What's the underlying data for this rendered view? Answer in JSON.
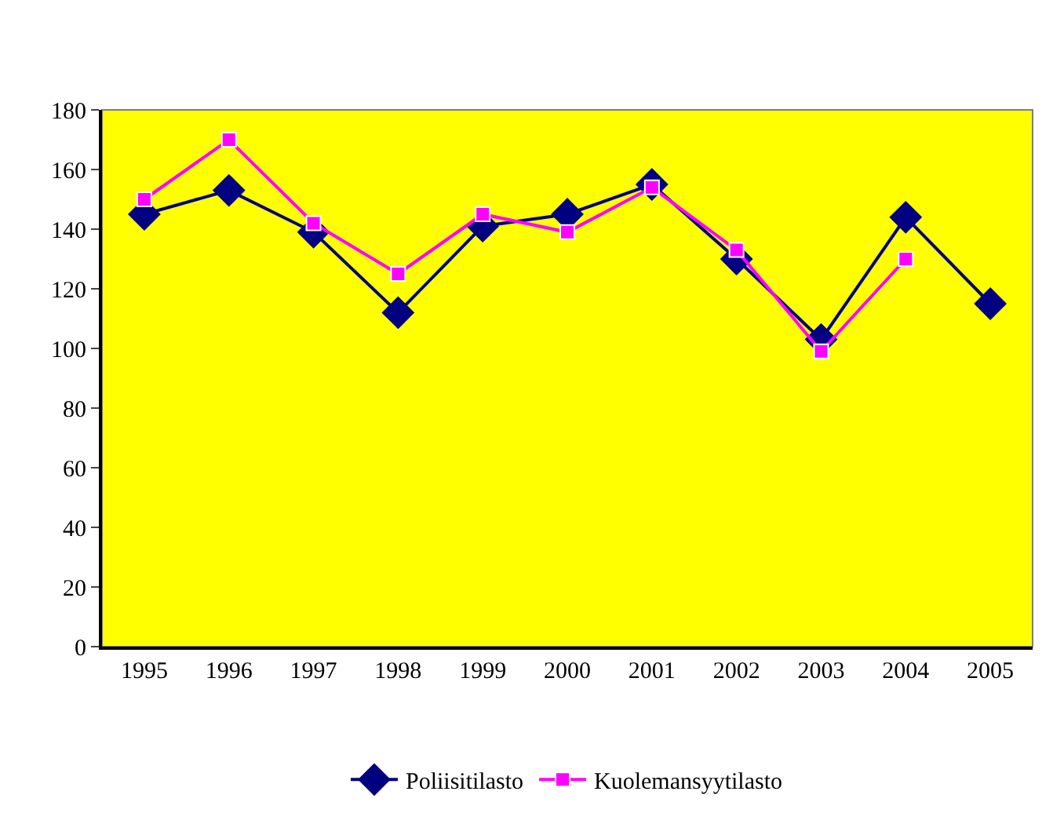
{
  "chart_data": {
    "type": "line",
    "categories": [
      "1995",
      "1996",
      "1997",
      "1998",
      "1999",
      "2000",
      "2001",
      "2002",
      "2003",
      "2004",
      "2005"
    ],
    "series": [
      {
        "name": "Poliisitilasto",
        "color": "#000080",
        "marker": "diamond",
        "values": [
          145,
          153,
          139,
          112,
          141,
          145,
          155,
          130,
          103,
          144,
          115
        ]
      },
      {
        "name": "Kuolemansyytilasto",
        "color": "#ff00ff",
        "marker": "square",
        "values": [
          150,
          170,
          142,
          125,
          145,
          139,
          154,
          133,
          99,
          130,
          null
        ]
      }
    ],
    "ylim": [
      0,
      180
    ],
    "yticks": [
      0,
      20,
      40,
      60,
      80,
      100,
      120,
      140,
      160,
      180
    ],
    "grid": false,
    "legend": "bottom",
    "line_style": "solid"
  }
}
